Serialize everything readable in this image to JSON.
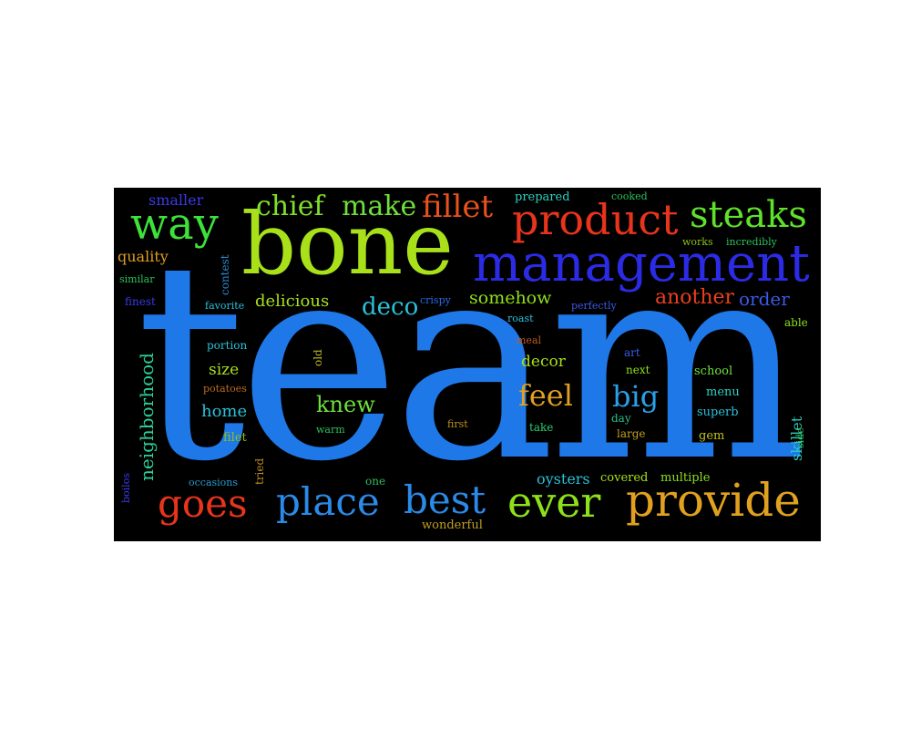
{
  "words": {
    "team": {
      "text": "team",
      "color": "#1f78e8"
    },
    "bone": {
      "text": "bone",
      "color": "#a8e01a"
    },
    "management": {
      "text": "management",
      "color": "#2b2be6"
    },
    "product": {
      "text": "product",
      "color": "#e8341c"
    },
    "steaks": {
      "text": "steaks",
      "color": "#5fe02a"
    },
    "way": {
      "text": "way",
      "color": "#3ee03a"
    },
    "chief": {
      "text": "chief",
      "color": "#7fe02a"
    },
    "make": {
      "text": "make",
      "color": "#6ee03a"
    },
    "fillet": {
      "text": "fillet",
      "color": "#e8501c"
    },
    "provide": {
      "text": "provide",
      "color": "#e0a020"
    },
    "ever": {
      "text": "ever",
      "color": "#8ee01a"
    },
    "best": {
      "text": "best",
      "color": "#2a8ae8"
    },
    "place": {
      "text": "place",
      "color": "#2a8ae8"
    },
    "goes": {
      "text": "goes",
      "color": "#e8341c"
    },
    "feel": {
      "text": "feel",
      "color": "#e0a020"
    },
    "big": {
      "text": "big",
      "color": "#2aa0e8"
    },
    "knew": {
      "text": "knew",
      "color": "#6ee03a"
    },
    "deco": {
      "text": "deco",
      "color": "#2ac0d8"
    },
    "another": {
      "text": "another",
      "color": "#e8401c"
    },
    "order": {
      "text": "order",
      "color": "#3a5ae8"
    },
    "somehow": {
      "text": "somehow",
      "color": "#8ee01a"
    },
    "delicious": {
      "text": "delicious",
      "color": "#a8e01a"
    },
    "decor": {
      "text": "decor",
      "color": "#a8e01a"
    },
    "home": {
      "text": "home",
      "color": "#2ac0d8"
    },
    "size": {
      "text": "size",
      "color": "#a8e01a"
    },
    "quality": {
      "text": "quality",
      "color": "#e0a020"
    },
    "smaller": {
      "text": "smaller",
      "color": "#3a3ae8"
    },
    "oysters": {
      "text": "oysters",
      "color": "#2ac0d8"
    },
    "covered": {
      "text": "covered",
      "color": "#a8e01a"
    },
    "multiple": {
      "text": "multiple",
      "color": "#8ee01a"
    },
    "wonderful": {
      "text": "wonderful",
      "color": "#c0a020"
    },
    "skillet": {
      "text": "skillet",
      "color": "#2ad0c0"
    },
    "school": {
      "text": "school",
      "color": "#6ee03a"
    },
    "menu": {
      "text": "menu",
      "color": "#2ad0c0"
    },
    "superb": {
      "text": "superb",
      "color": "#2ac0d8"
    },
    "gem": {
      "text": "gem",
      "color": "#c0c020"
    },
    "next": {
      "text": "next",
      "color": "#8ee01a"
    },
    "art": {
      "text": "art",
      "color": "#3a5ae8"
    },
    "day": {
      "text": "day",
      "color": "#2ac08a"
    },
    "large": {
      "text": "large",
      "color": "#c0a020"
    },
    "take": {
      "text": "take",
      "color": "#2ad070"
    },
    "first": {
      "text": "first",
      "color": "#c09020"
    },
    "warm": {
      "text": "warm",
      "color": "#2ac05a"
    },
    "filet": {
      "text": "filet",
      "color": "#8ec01a"
    },
    "one": {
      "text": "one",
      "color": "#2ac05a"
    },
    "occasions": {
      "text": "occasions",
      "color": "#2a9ad0"
    },
    "portion": {
      "text": "portion",
      "color": "#2ac0d8"
    },
    "potatoes": {
      "text": "potatoes",
      "color": "#c06a20"
    },
    "favorite": {
      "text": "favorite",
      "color": "#2ac0d8"
    },
    "finest": {
      "text": "finest",
      "color": "#3a3ae8"
    },
    "similar": {
      "text": "similar",
      "color": "#2ac05a"
    },
    "crispy": {
      "text": "crispy",
      "color": "#2a6ae8"
    },
    "perfectly": {
      "text": "perfectly",
      "color": "#3a5ae8"
    },
    "roast": {
      "text": "roast",
      "color": "#2ac0d8"
    },
    "meal": {
      "text": "meal",
      "color": "#c05a1c"
    },
    "able": {
      "text": "able",
      "color": "#8ee01a"
    },
    "works": {
      "text": "works",
      "color": "#8ec01a"
    },
    "incredibly": {
      "text": "incredibly",
      "color": "#2ac05a"
    },
    "prepared": {
      "text": "prepared",
      "color": "#2ad0c0"
    },
    "cooked": {
      "text": "cooked",
      "color": "#2ac05a"
    },
    "neighborhood": {
      "text": "neighborhood",
      "color": "#2ad09a"
    },
    "contest": {
      "text": "contest",
      "color": "#2a8ad0"
    },
    "old": {
      "text": "old",
      "color": "#c0c020"
    },
    "tried": {
      "text": "tried",
      "color": "#c09020"
    },
    "boilos": {
      "text": "boilos",
      "color": "#3a3ae8"
    },
    "side": {
      "text": "side",
      "color": "#2ac05a"
    }
  }
}
